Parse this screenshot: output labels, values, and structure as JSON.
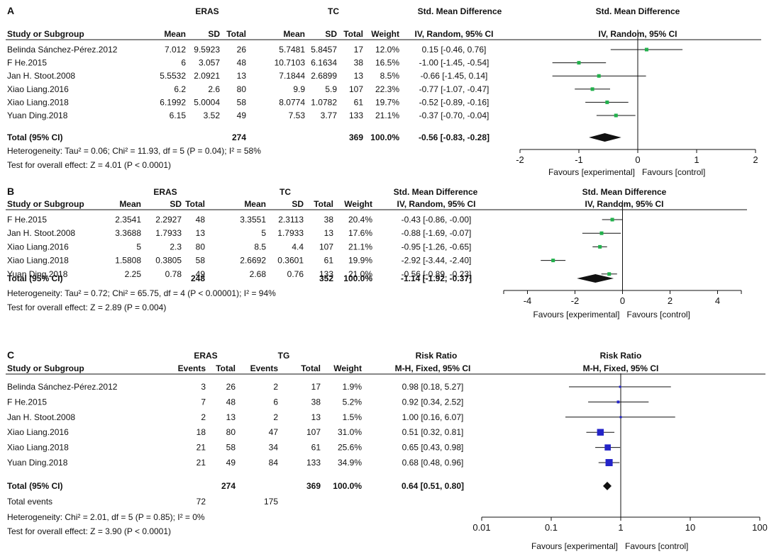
{
  "panels": [
    {
      "label": "A",
      "group1": "ERAS",
      "group2": "TC",
      "col_headers": [
        "Study or Subgroup",
        "Mean",
        "SD",
        "Total",
        "Mean",
        "SD",
        "Total",
        "Weight"
      ],
      "effect_header": "Std. Mean Difference",
      "effect_sub": "IV, Random, 95% CI",
      "plot_header": "Std. Mean Difference",
      "plot_sub": "IV, Random, 95% CI",
      "studies": [
        {
          "name": "Belinda Sánchez-Pérez.2012",
          "cells": [
            "7.012",
            "9.5923",
            "26",
            "5.7481",
            "5.8457",
            "17",
            "12.0%"
          ],
          "ci": "0.15 [-0.46, 0.76]",
          "est": 0.15,
          "lo": -0.46,
          "hi": 0.76
        },
        {
          "name": "F He.2015",
          "cells": [
            "6",
            "3.057",
            "48",
            "10.7103",
            "6.1634",
            "38",
            "16.5%"
          ],
          "ci": "-1.00 [-1.45, -0.54]",
          "est": -1.0,
          "lo": -1.45,
          "hi": -0.54
        },
        {
          "name": "Jan H. Stoot.2008",
          "cells": [
            "5.5532",
            "2.0921",
            "13",
            "7.1844",
            "2.6899",
            "13",
            "8.5%"
          ],
          "ci": "-0.66 [-1.45, 0.14]",
          "est": -0.66,
          "lo": -1.45,
          "hi": 0.14
        },
        {
          "name": "Xiao Liang.2016",
          "cells": [
            "6.2",
            "2.6",
            "80",
            "9.9",
            "5.9",
            "107",
            "22.3%"
          ],
          "ci": "-0.77 [-1.07, -0.47]",
          "est": -0.77,
          "lo": -1.07,
          "hi": -0.47
        },
        {
          "name": "Xiao Liang.2018",
          "cells": [
            "6.1992",
            "5.0004",
            "58",
            "8.0774",
            "1.0782",
            "61",
            "19.7%"
          ],
          "ci": "-0.52 [-0.89, -0.16]",
          "est": -0.52,
          "lo": -0.89,
          "hi": -0.16
        },
        {
          "name": "Yuan Ding.2018",
          "cells": [
            "6.15",
            "3.52",
            "49",
            "7.53",
            "3.77",
            "133",
            "21.1%"
          ],
          "ci": "-0.37 [-0.70, -0.04]",
          "est": -0.37,
          "lo": -0.7,
          "hi": -0.04
        }
      ],
      "total": {
        "label": "Total (95% CI)",
        "cells": [
          "",
          "",
          "274",
          "",
          "",
          "369",
          "100.0%"
        ],
        "ci": "-0.56 [-0.83, -0.28]",
        "est": -0.56,
        "lo": -0.83,
        "hi": -0.28
      },
      "extra_rows": [],
      "notes": [
        "Heterogeneity: Tau² = 0.06; Chi² = 11.93, df = 5 (P = 0.04); I² = 58%",
        "Test for overall effect: Z = 4.01 (P < 0.0001)"
      ],
      "axis": {
        "scale": "linear",
        "min": -2,
        "max": 2,
        "ticks": [
          -2,
          -1,
          0,
          1,
          2
        ],
        "tick_labels": [
          "-2",
          "-1",
          "0",
          "1",
          "2"
        ],
        "null": 0
      },
      "favours_left": "Favours [experimental]",
      "favours_right": "Favours [control]"
    },
    {
      "label": "B",
      "group1": "ERAS",
      "group2": "TC",
      "col_headers": [
        "Study or Subgroup",
        "Mean",
        "SD",
        "Total",
        "Mean",
        "SD",
        "Total",
        "Weight"
      ],
      "effect_header": "Std. Mean Difference",
      "effect_sub": "IV, Random, 95% CI",
      "plot_header": "Std. Mean Difference",
      "plot_sub": "IV, Random, 95% CI",
      "studies": [
        {
          "name": "F He.2015",
          "cells": [
            "2.3541",
            "2.2927",
            "48",
            "3.3551",
            "2.3113",
            "38",
            "20.4%"
          ],
          "ci": "-0.43 [-0.86, -0.00]",
          "est": -0.43,
          "lo": -0.86,
          "hi": 0.0
        },
        {
          "name": "Jan H. Stoot.2008",
          "cells": [
            "3.3688",
            "1.7933",
            "13",
            "5",
            "1.7933",
            "13",
            "17.6%"
          ],
          "ci": "-0.88 [-1.69, -0.07]",
          "est": -0.88,
          "lo": -1.69,
          "hi": -0.07
        },
        {
          "name": "Xiao Liang.2016",
          "cells": [
            "5",
            "2.3",
            "80",
            "8.5",
            "4.4",
            "107",
            "21.1%"
          ],
          "ci": "-0.95 [-1.26, -0.65]",
          "est": -0.95,
          "lo": -1.26,
          "hi": -0.65
        },
        {
          "name": "Xiao Liang.2018",
          "cells": [
            "1.5808",
            "0.3805",
            "58",
            "2.6692",
            "0.3601",
            "61",
            "19.9%"
          ],
          "ci": "-2.92 [-3.44, -2.40]",
          "est": -2.92,
          "lo": -3.44,
          "hi": -2.4
        },
        {
          "name": "Yuan Ding.2018",
          "cells": [
            "2.25",
            "0.78",
            "49",
            "2.68",
            "0.76",
            "133",
            "21.0%"
          ],
          "ci": "-0.56 [-0.89, -0.23]",
          "est": -0.56,
          "lo": -0.89,
          "hi": -0.23
        }
      ],
      "total": {
        "label": "Total (95% CI)",
        "cells": [
          "",
          "",
          "248",
          "",
          "",
          "352",
          "100.0%"
        ],
        "ci": "-1.14 [-1.92, -0.37]",
        "est": -1.14,
        "lo": -1.92,
        "hi": -0.37
      },
      "extra_rows": [],
      "notes": [
        "Heterogeneity: Tau² = 0.72; Chi² = 65.75, df = 4 (P < 0.00001); I² = 94%",
        "Test for overall effect: Z = 2.89 (P = 0.004)"
      ],
      "axis": {
        "scale": "linear",
        "min": -5,
        "max": 5,
        "ticks": [
          -4,
          -2,
          0,
          2,
          4
        ],
        "tick_labels": [
          "-4",
          "-2",
          "0",
          "2",
          "4"
        ],
        "null": 0
      },
      "favours_left": "Favours [experimental]",
      "favours_right": "Favours [control]"
    },
    {
      "label": "C",
      "group1": "ERAS",
      "group2": "TG",
      "col_headers": [
        "Study or Subgroup",
        "Events",
        "Total",
        "Events",
        "Total",
        "Weight"
      ],
      "effect_header": "Risk Ratio",
      "effect_sub": "M-H, Fixed, 95% CI",
      "plot_header": "Risk Ratio",
      "plot_sub": "M-H, Fixed, 95% CI",
      "studies": [
        {
          "name": "Belinda Sánchez-Pérez.2012",
          "cells": [
            "3",
            "26",
            "2",
            "17",
            "1.9%"
          ],
          "ci": "0.98 [0.18, 5.27]",
          "est": 0.98,
          "lo": 0.18,
          "hi": 5.27
        },
        {
          "name": "F He.2015",
          "cells": [
            "7",
            "48",
            "6",
            "38",
            "5.2%"
          ],
          "ci": "0.92 [0.34, 2.52]",
          "est": 0.92,
          "lo": 0.34,
          "hi": 2.52
        },
        {
          "name": "Jan H. Stoot.2008",
          "cells": [
            "2",
            "13",
            "2",
            "13",
            "1.5%"
          ],
          "ci": "1.00 [0.16, 6.07]",
          "est": 1.0,
          "lo": 0.16,
          "hi": 6.07
        },
        {
          "name": "Xiao Liang.2016",
          "cells": [
            "18",
            "80",
            "47",
            "107",
            "31.0%"
          ],
          "ci": "0.51 [0.32, 0.81]",
          "est": 0.51,
          "lo": 0.32,
          "hi": 0.81
        },
        {
          "name": "Xiao Liang.2018",
          "cells": [
            "21",
            "58",
            "34",
            "61",
            "25.6%"
          ],
          "ci": "0.65 [0.43, 0.98]",
          "est": 0.65,
          "lo": 0.43,
          "hi": 0.98
        },
        {
          "name": "Yuan Ding.2018",
          "cells": [
            "21",
            "49",
            "84",
            "133",
            "34.9%"
          ],
          "ci": "0.68 [0.48, 0.96]",
          "est": 0.68,
          "lo": 0.48,
          "hi": 0.96
        }
      ],
      "total": {
        "label": "Total (95% CI)",
        "cells": [
          "",
          "274",
          "",
          "369",
          "100.0%"
        ],
        "ci": "0.64 [0.51, 0.80]",
        "est": 0.64,
        "lo": 0.51,
        "hi": 0.8
      },
      "extra_rows": [
        {
          "label": "Total events",
          "cells": [
            "72",
            "",
            "175",
            "",
            ""
          ]
        }
      ],
      "notes": [
        "Heterogeneity: Chi² = 2.01, df = 5 (P = 0.85); I² = 0%",
        "Test for overall effect: Z = 3.90 (P < 0.0001)"
      ],
      "axis": {
        "scale": "log",
        "min": 0.01,
        "max": 100,
        "ticks": [
          0.01,
          0.1,
          1,
          10,
          100
        ],
        "tick_labels": [
          "0.01",
          "0.1",
          "1",
          "10",
          "100"
        ],
        "null": 1
      },
      "favours_left": "Favours [experimental]",
      "favours_right": "Favours [control]"
    }
  ],
  "chart_data": [
    {
      "type": "forest",
      "panel": "A",
      "measure": "Std. Mean Difference (IV, Random, 95% CI)",
      "categories": [
        "Belinda Sánchez-Pérez.2012",
        "F He.2015",
        "Jan H. Stoot.2008",
        "Xiao Liang.2016",
        "Xiao Liang.2018",
        "Yuan Ding.2018",
        "Total (95% CI)"
      ],
      "estimate": [
        0.15,
        -1.0,
        -0.66,
        -0.77,
        -0.52,
        -0.37,
        -0.56
      ],
      "ci_low": [
        -0.46,
        -1.45,
        -1.45,
        -1.07,
        -0.89,
        -0.7,
        -0.83
      ],
      "ci_high": [
        0.76,
        -0.54,
        0.14,
        -0.47,
        -0.16,
        -0.04,
        -0.28
      ],
      "weights": [
        12.0,
        16.5,
        8.5,
        22.3,
        19.7,
        21.1,
        100.0
      ],
      "xlim": [
        -2,
        2
      ],
      "xlabel_left": "Favours [experimental]",
      "xlabel_right": "Favours [control]"
    },
    {
      "type": "forest",
      "panel": "B",
      "measure": "Std. Mean Difference (IV, Random, 95% CI)",
      "categories": [
        "F He.2015",
        "Jan H. Stoot.2008",
        "Xiao Liang.2016",
        "Xiao Liang.2018",
        "Yuan Ding.2018",
        "Total (95% CI)"
      ],
      "estimate": [
        -0.43,
        -0.88,
        -0.95,
        -2.92,
        -0.56,
        -1.14
      ],
      "ci_low": [
        -0.86,
        -1.69,
        -1.26,
        -3.44,
        -0.89,
        -1.92
      ],
      "ci_high": [
        0.0,
        -0.07,
        -0.65,
        -2.4,
        -0.23,
        -0.37
      ],
      "weights": [
        20.4,
        17.6,
        21.1,
        19.9,
        21.0,
        100.0
      ],
      "xlim": [
        -5,
        5
      ],
      "xlabel_left": "Favours [experimental]",
      "xlabel_right": "Favours [control]"
    },
    {
      "type": "forest",
      "panel": "C",
      "measure": "Risk Ratio (M-H, Fixed, 95% CI)",
      "categories": [
        "Belinda Sánchez-Pérez.2012",
        "F He.2015",
        "Jan H. Stoot.2008",
        "Xiao Liang.2016",
        "Xiao Liang.2018",
        "Yuan Ding.2018",
        "Total (95% CI)"
      ],
      "estimate": [
        0.98,
        0.92,
        1.0,
        0.51,
        0.65,
        0.68,
        0.64
      ],
      "ci_low": [
        0.18,
        0.34,
        0.16,
        0.32,
        0.43,
        0.48,
        0.51
      ],
      "ci_high": [
        5.27,
        2.52,
        6.07,
        0.81,
        0.98,
        0.96,
        0.8
      ],
      "weights": [
        1.9,
        5.2,
        1.5,
        31.0,
        25.6,
        34.9,
        100.0
      ],
      "xlim": [
        0.01,
        100
      ],
      "xscale": "log",
      "xlabel_left": "Favours [experimental]",
      "xlabel_right": "Favours [control]"
    }
  ]
}
